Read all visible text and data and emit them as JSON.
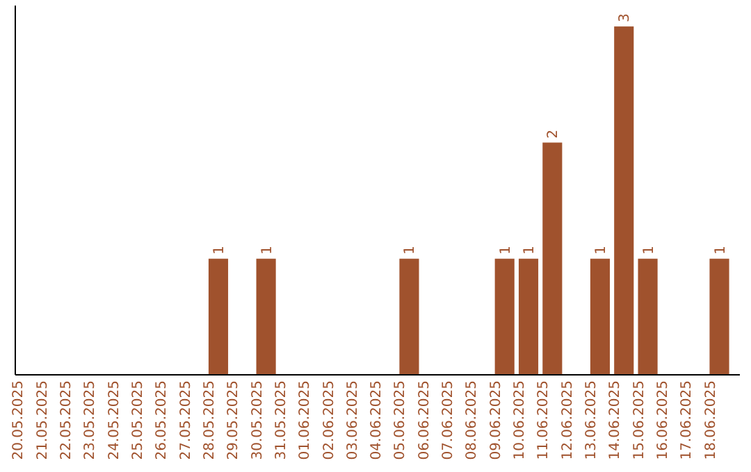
{
  "chart_data": {
    "type": "bar",
    "categories": [
      "20.05.2025",
      "21.05.2025",
      "22.05.2025",
      "23.05.2025",
      "24.05.2025",
      "25.05.2025",
      "26.05.2025",
      "27.05.2025",
      "28.05.2025",
      "29.05.2025",
      "30.05.2025",
      "31.05.2025",
      "01.06.2025",
      "02.06.2025",
      "03.06.2025",
      "04.06.2025",
      "05.06.2025",
      "06.06.2025",
      "07.06.2025",
      "08.06.2025",
      "09.06.2025",
      "10.06.2025",
      "11.06.2025",
      "12.06.2025",
      "13.06.2025",
      "14.06.2025",
      "15.06.2025",
      "16.06.2025",
      "17.06.2025",
      "18.06.2025"
    ],
    "values": [
      0,
      0,
      0,
      0,
      0,
      0,
      0,
      0,
      1,
      0,
      1,
      0,
      0,
      0,
      0,
      0,
      1,
      0,
      0,
      0,
      1,
      1,
      2,
      0,
      1,
      3,
      1,
      0,
      0,
      1
    ],
    "value_labels": [
      null,
      null,
      null,
      null,
      null,
      null,
      null,
      null,
      "1",
      null,
      "1",
      null,
      null,
      null,
      null,
      null,
      "1",
      null,
      null,
      null,
      "1",
      "1",
      "2",
      null,
      "1",
      "3",
      "1",
      null,
      null,
      "1"
    ],
    "color": "#a0522d",
    "ylim": [
      0,
      3.18
    ],
    "tick_labels": "x"
  }
}
